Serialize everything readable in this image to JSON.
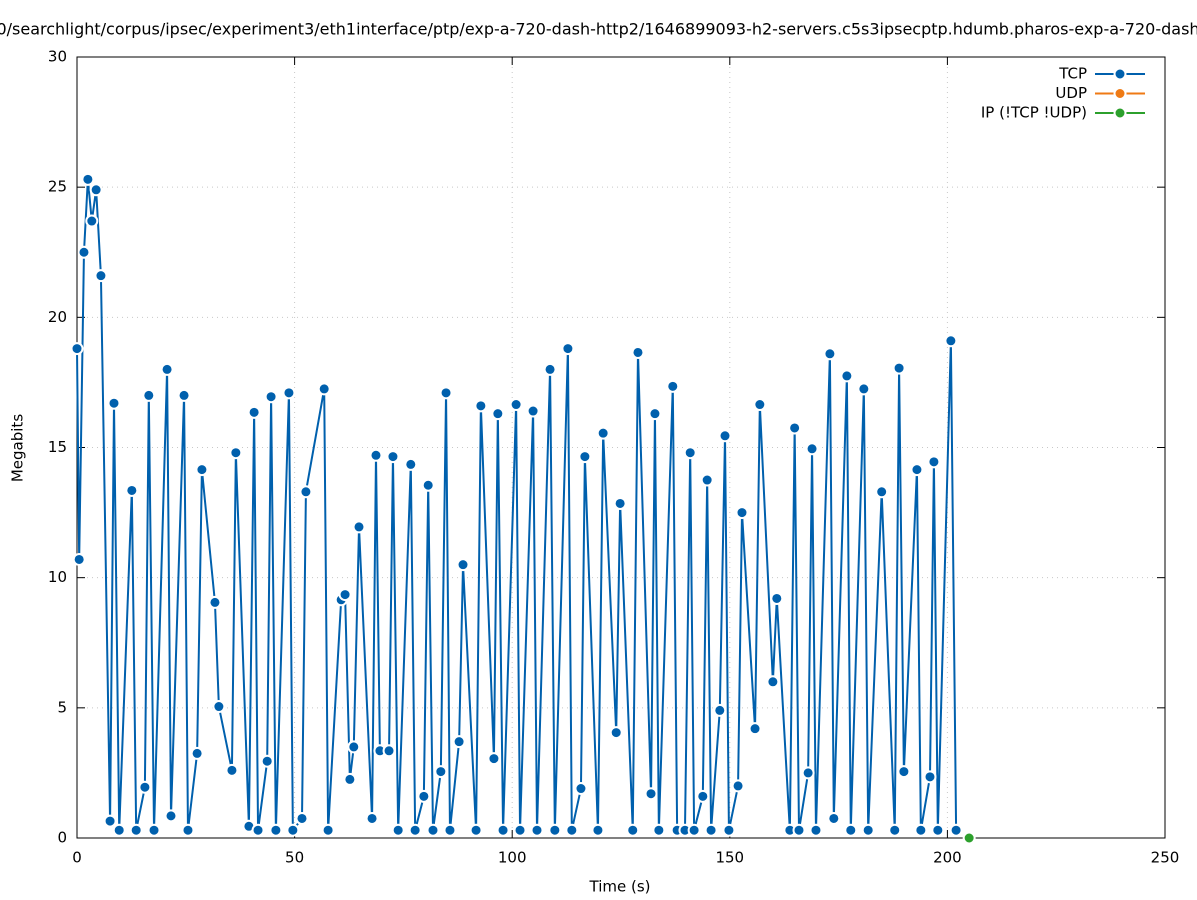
{
  "chart_data": {
    "type": "line",
    "title": "0/searchlight/corpus/ipsec/experiment3/eth1interface/ptp/exp-a-720-dash-http2/1646899093-h2-servers.c5s3ipsecptp.hdumb.pharos-exp-a-720-dash",
    "xlabel": "Time (s)",
    "ylabel": "Megabits",
    "xlim": [
      0,
      250
    ],
    "xticks": [
      0,
      50,
      100,
      150,
      200,
      250
    ],
    "ylim": [
      0,
      30
    ],
    "yticks": [
      0,
      5,
      10,
      15,
      20,
      25,
      30
    ],
    "grid": true,
    "legend": "top-right",
    "series": [
      {
        "name": "TCP",
        "color": "#0060ad",
        "x": [
          0,
          0.5,
          1.6,
          2.5,
          3.4,
          4.4,
          5.5,
          7.6,
          8.5,
          9.7,
          12.6,
          13.6,
          15.6,
          16.5,
          17.7,
          20.7,
          21.6,
          24.6,
          25.5,
          27.6,
          28.7,
          31.7,
          32.6,
          35.6,
          36.5,
          39.5,
          40.7,
          41.6,
          43.7,
          44.6,
          45.7,
          48.7,
          49.6,
          51.7,
          52.6,
          56.8,
          57.7,
          60.7,
          61.6,
          62.7,
          63.6,
          64.8,
          67.8,
          68.7,
          69.6,
          71.7,
          72.6,
          73.8,
          76.7,
          77.7,
          79.7,
          80.7,
          81.8,
          83.6,
          84.8,
          85.7,
          87.8,
          88.7,
          91.7,
          92.8,
          95.8,
          96.7,
          97.9,
          100.9,
          101.8,
          104.8,
          105.7,
          108.7,
          109.8,
          112.8,
          113.7,
          115.8,
          116.7,
          119.7,
          120.9,
          123.9,
          124.8,
          127.7,
          128.9,
          131.9,
          132.8,
          133.7,
          136.9,
          137.9,
          139.7,
          140.9,
          141.8,
          143.8,
          144.8,
          145.7,
          147.7,
          148.9,
          149.8,
          151.9,
          152.8,
          155.8,
          156.9,
          159.9,
          160.8,
          163.8,
          164.9,
          165.9,
          168.0,
          168.9,
          169.8,
          173.0,
          173.9,
          176.9,
          177.8,
          180.8,
          181.8,
          184.9,
          187.9,
          188.9,
          190.0,
          193.0,
          193.9,
          196.0,
          196.9,
          197.8,
          200.8,
          202.0
        ],
        "values": [
          18.8,
          10.7,
          22.5,
          25.3,
          23.7,
          24.9,
          21.6,
          0.65,
          16.7,
          0.3,
          13.35,
          0.3,
          1.95,
          17.0,
          0.3,
          18.0,
          0.85,
          17.0,
          0.3,
          3.25,
          14.15,
          9.05,
          5.05,
          2.6,
          14.8,
          0.45,
          16.35,
          0.3,
          2.95,
          16.95,
          0.3,
          17.1,
          0.3,
          0.75,
          13.3,
          17.25,
          0.3,
          9.15,
          9.35,
          2.25,
          3.5,
          11.95,
          0.75,
          14.7,
          3.35,
          3.35,
          14.65,
          0.3,
          14.35,
          0.3,
          1.6,
          13.55,
          0.3,
          2.55,
          17.1,
          0.3,
          3.7,
          10.5,
          0.3,
          16.6,
          3.05,
          16.3,
          0.3,
          16.65,
          0.3,
          16.4,
          0.3,
          18.0,
          0.3,
          18.8,
          0.3,
          1.9,
          14.65,
          0.3,
          15.55,
          4.05,
          12.85,
          0.3,
          18.65,
          1.7,
          16.3,
          0.3,
          17.35,
          0.3,
          0.3,
          14.8,
          0.3,
          1.6,
          13.75,
          0.3,
          4.9,
          15.45,
          0.3,
          2.0,
          12.5,
          4.2,
          16.65,
          6.0,
          9.2,
          0.3,
          15.75,
          0.3,
          2.5,
          14.95,
          0.3,
          18.6,
          0.75,
          17.75,
          0.3,
          17.25,
          0.3,
          13.3,
          0.3,
          18.05,
          2.55,
          14.15,
          0.3,
          2.35,
          14.45,
          0.3,
          19.1,
          0.3
        ]
      },
      {
        "name": "UDP",
        "color": "#ef7a14",
        "x": [],
        "values": []
      },
      {
        "name": "IP (!TCP  !UDP)",
        "color": "#2ca02c",
        "x": [
          205
        ],
        "values": [
          0
        ]
      }
    ]
  }
}
